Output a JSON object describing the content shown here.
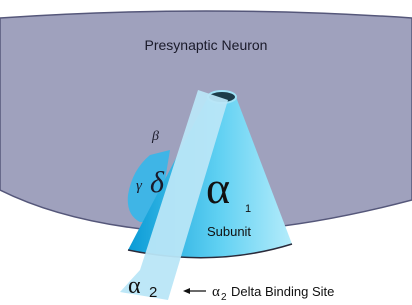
{
  "region": {
    "label": "Presynaptic Neuron"
  },
  "subunits": {
    "beta": "β",
    "gamma": "γ",
    "delta": "δ",
    "alpha1": {
      "symbol": "α",
      "index": "1",
      "label": "Subunit"
    },
    "alpha2": {
      "symbol": "α",
      "index": "2"
    }
  },
  "callout": {
    "symbol": "α",
    "index": "2",
    "label": "Delta Binding Site"
  }
}
